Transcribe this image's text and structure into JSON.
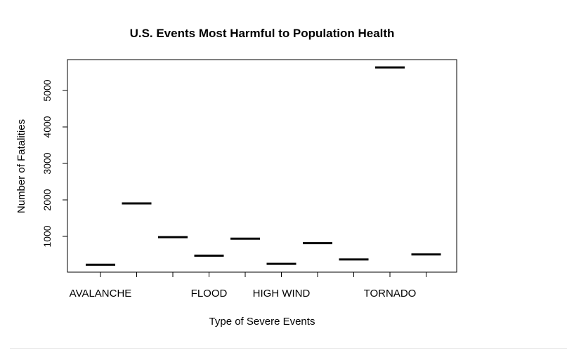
{
  "chart_data": {
    "type": "line",
    "title": "U.S. Events Most Harmful to Population Health",
    "xlabel": "Type of Severe Events",
    "ylabel": "Number of Fatalities",
    "categories": [
      "AVALANCHE",
      "",
      "",
      "FLOOD",
      "",
      "HIGH WIND",
      "",
      "",
      "TORNADO",
      ""
    ],
    "values": [
      224,
      1903,
      978,
      470,
      937,
      248,
      816,
      368,
      5633,
      504
    ],
    "y_ticks": [
      1000,
      2000,
      3000,
      4000,
      5000
    ],
    "ylim": [
      0,
      5800
    ],
    "grid": false,
    "legend": "none"
  },
  "colors": {
    "mark": "#000000",
    "axis": "#000000",
    "background": "#ffffff"
  }
}
